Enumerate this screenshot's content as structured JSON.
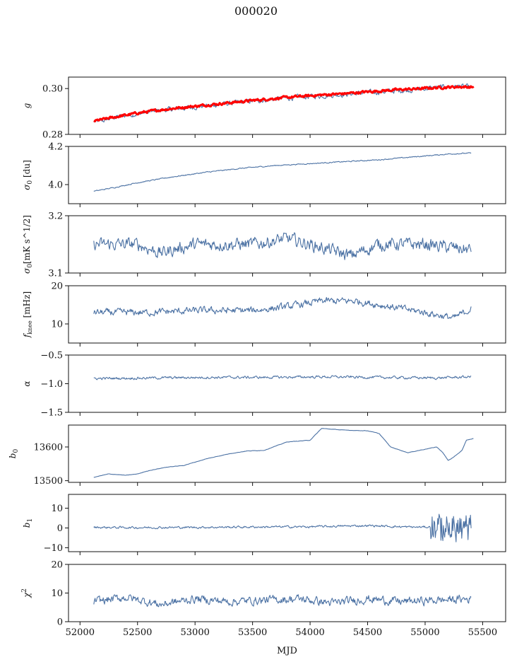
{
  "figure": {
    "title": "000020",
    "xlabel": "MJD"
  },
  "colors": {
    "series": "#4c72a4",
    "fit": "#ff0000",
    "axes": "#111111"
  },
  "chart_data": [
    {
      "type": "line",
      "ylabel": "g",
      "ylim": [
        0.28,
        0.305
      ],
      "yticks": [
        0.28,
        0.3
      ],
      "ytick_labels": [
        "0.28",
        "0.30"
      ],
      "xlim": [
        51900,
        55700
      ],
      "series": [
        {
          "x": [
            52120,
            52200,
            52300,
            52500,
            52700,
            52900,
            53100,
            53300,
            53500,
            53700,
            53900,
            54100,
            54300,
            54500,
            54700,
            54900,
            55100,
            55300,
            55400
          ],
          "values": [
            0.2855,
            0.286,
            0.2875,
            0.289,
            0.2905,
            0.2915,
            0.2925,
            0.2935,
            0.2945,
            0.2955,
            0.2962,
            0.2968,
            0.2975,
            0.2982,
            0.2988,
            0.2995,
            0.3005,
            0.301,
            0.3005
          ],
          "color": "#4c72a4",
          "noise": 0.0012
        },
        {
          "x": [
            52120,
            52300,
            52500,
            52700,
            52900,
            53100,
            53300,
            53500,
            53700,
            53900,
            54100,
            54300,
            54500,
            54700,
            54900,
            55100,
            55300,
            55420
          ],
          "values": [
            0.2858,
            0.2875,
            0.2893,
            0.2907,
            0.2918,
            0.2928,
            0.2938,
            0.2948,
            0.2957,
            0.2965,
            0.2972,
            0.2978,
            0.2986,
            0.2993,
            0.2998,
            0.3004,
            0.3008,
            0.3006
          ],
          "color": "#ff0000",
          "noise": 0.0006,
          "thick": true
        }
      ]
    },
    {
      "type": "line",
      "ylabel": "σ0 [du]",
      "ylim": [
        3.9,
        4.2
      ],
      "yticks": [
        4.0,
        4.2
      ],
      "ytick_labels": [
        "4.0",
        "4.2"
      ],
      "xlim": [
        51900,
        55700
      ],
      "series": [
        {
          "x": [
            52120,
            52300,
            52500,
            52800,
            53100,
            53400,
            53700,
            54000,
            54300,
            54600,
            54900,
            55200,
            55400
          ],
          "values": [
            3.965,
            3.985,
            4.01,
            4.04,
            4.065,
            4.085,
            4.1,
            4.11,
            4.12,
            4.13,
            4.145,
            4.16,
            4.165
          ],
          "color": "#4c72a4",
          "noise": 0.003
        }
      ]
    },
    {
      "type": "line",
      "ylabel": "σ0[mK s^1/2]",
      "ylim": [
        3.1,
        3.2
      ],
      "yticks": [
        3.1,
        3.2
      ],
      "ytick_labels": [
        "3.1",
        "3.2"
      ],
      "xlim": [
        51900,
        55700
      ],
      "series": [
        {
          "x": [
            52120,
            52500,
            52700,
            53000,
            53500,
            53800,
            54000,
            54350,
            54600,
            55000,
            55400
          ],
          "values": [
            3.15,
            3.15,
            3.135,
            3.15,
            3.15,
            3.16,
            3.15,
            3.13,
            3.15,
            3.15,
            3.14
          ],
          "color": "#4c72a4",
          "noise": 0.012
        }
      ]
    },
    {
      "type": "line",
      "ylabel": "f_knee [mHz]",
      "ylim": [
        5,
        20
      ],
      "yticks": [
        10,
        20
      ],
      "ytick_labels": [
        "10",
        "20"
      ],
      "xlim": [
        51900,
        55700
      ],
      "series": [
        {
          "x": [
            52120,
            52600,
            53000,
            53500,
            53800,
            54100,
            54400,
            54700,
            55000,
            55250,
            55400
          ],
          "values": [
            13,
            13,
            13.5,
            13.5,
            14.5,
            16,
            16,
            14.5,
            13,
            11.5,
            14
          ],
          "color": "#4c72a4",
          "noise": 1.0
        }
      ]
    },
    {
      "type": "line",
      "ylabel": "α",
      "ylim": [
        -1.5,
        -0.5
      ],
      "yticks": [
        -1.5,
        -1.0,
        -0.5
      ],
      "ytick_labels": [
        "−1.5",
        "−1.0",
        "−0.5"
      ],
      "xlim": [
        51900,
        55700
      ],
      "series": [
        {
          "x": [
            52120,
            52600,
            53100,
            53600,
            54100,
            54600,
            55100,
            55400
          ],
          "values": [
            -0.91,
            -0.9,
            -0.89,
            -0.89,
            -0.88,
            -0.89,
            -0.9,
            -0.88
          ],
          "color": "#4c72a4",
          "noise": 0.025
        }
      ]
    },
    {
      "type": "line",
      "ylabel": "b0",
      "ylim": [
        13495,
        13665
      ],
      "yticks": [
        13500,
        13600
      ],
      "ytick_labels": [
        "13500",
        "13600"
      ],
      "xlim": [
        51900,
        55700
      ],
      "series": [
        {
          "x": [
            52120,
            52250,
            52400,
            52500,
            52600,
            52750,
            52900,
            53100,
            53300,
            53450,
            53600,
            53800,
            54000,
            54100,
            54300,
            54500,
            54600,
            54700,
            54850,
            54950,
            55100,
            55150,
            55200,
            55250,
            55320,
            55360,
            55420
          ],
          "values": [
            13510,
            13520,
            13516,
            13520,
            13530,
            13540,
            13545,
            13565,
            13580,
            13588,
            13590,
            13615,
            13620,
            13655,
            13650,
            13648,
            13640,
            13600,
            13583,
            13590,
            13600,
            13585,
            13560,
            13570,
            13590,
            13620,
            13625
          ],
          "color": "#4c72a4",
          "noise": 0.6
        }
      ]
    },
    {
      "type": "line",
      "ylabel": "b1",
      "ylim": [
        -12,
        17
      ],
      "yticks": [
        -10,
        0,
        10
      ],
      "ytick_labels": [
        "−10",
        "0",
        "10"
      ],
      "xlim": [
        51900,
        55700
      ],
      "series": [
        {
          "x": [
            52120,
            52500,
            53000,
            53500,
            54000,
            54500,
            54900,
            55050,
            55200,
            55400
          ],
          "values": [
            0.3,
            0.2,
            0.3,
            0.5,
            0.6,
            1.2,
            0.4,
            0.5,
            -0.5,
            0
          ],
          "color": "#4c72a4",
          "noise": 0.6
        }
      ]
    },
    {
      "type": "line",
      "ylabel": "χ²",
      "ylim": [
        0,
        20
      ],
      "yticks": [
        0,
        10,
        20
      ],
      "ytick_labels": [
        "0",
        "10",
        "20"
      ],
      "xlim": [
        51900,
        55700
      ],
      "xticks": [
        52000,
        52500,
        53000,
        53500,
        54000,
        54500,
        55000,
        55500
      ],
      "xtick_labels": [
        "52000",
        "52500",
        "53000",
        "53500",
        "54000",
        "54500",
        "55000",
        "55500"
      ],
      "series": [
        {
          "x": [
            52120,
            52400,
            52700,
            53000,
            53300,
            53600,
            53900,
            54200,
            54500,
            54800,
            55100,
            55400
          ],
          "values": [
            7,
            8.5,
            6,
            8,
            7,
            7.5,
            8,
            6.5,
            8,
            7,
            7.5,
            8
          ],
          "color": "#4c72a4",
          "noise": 1.6
        }
      ]
    }
  ]
}
